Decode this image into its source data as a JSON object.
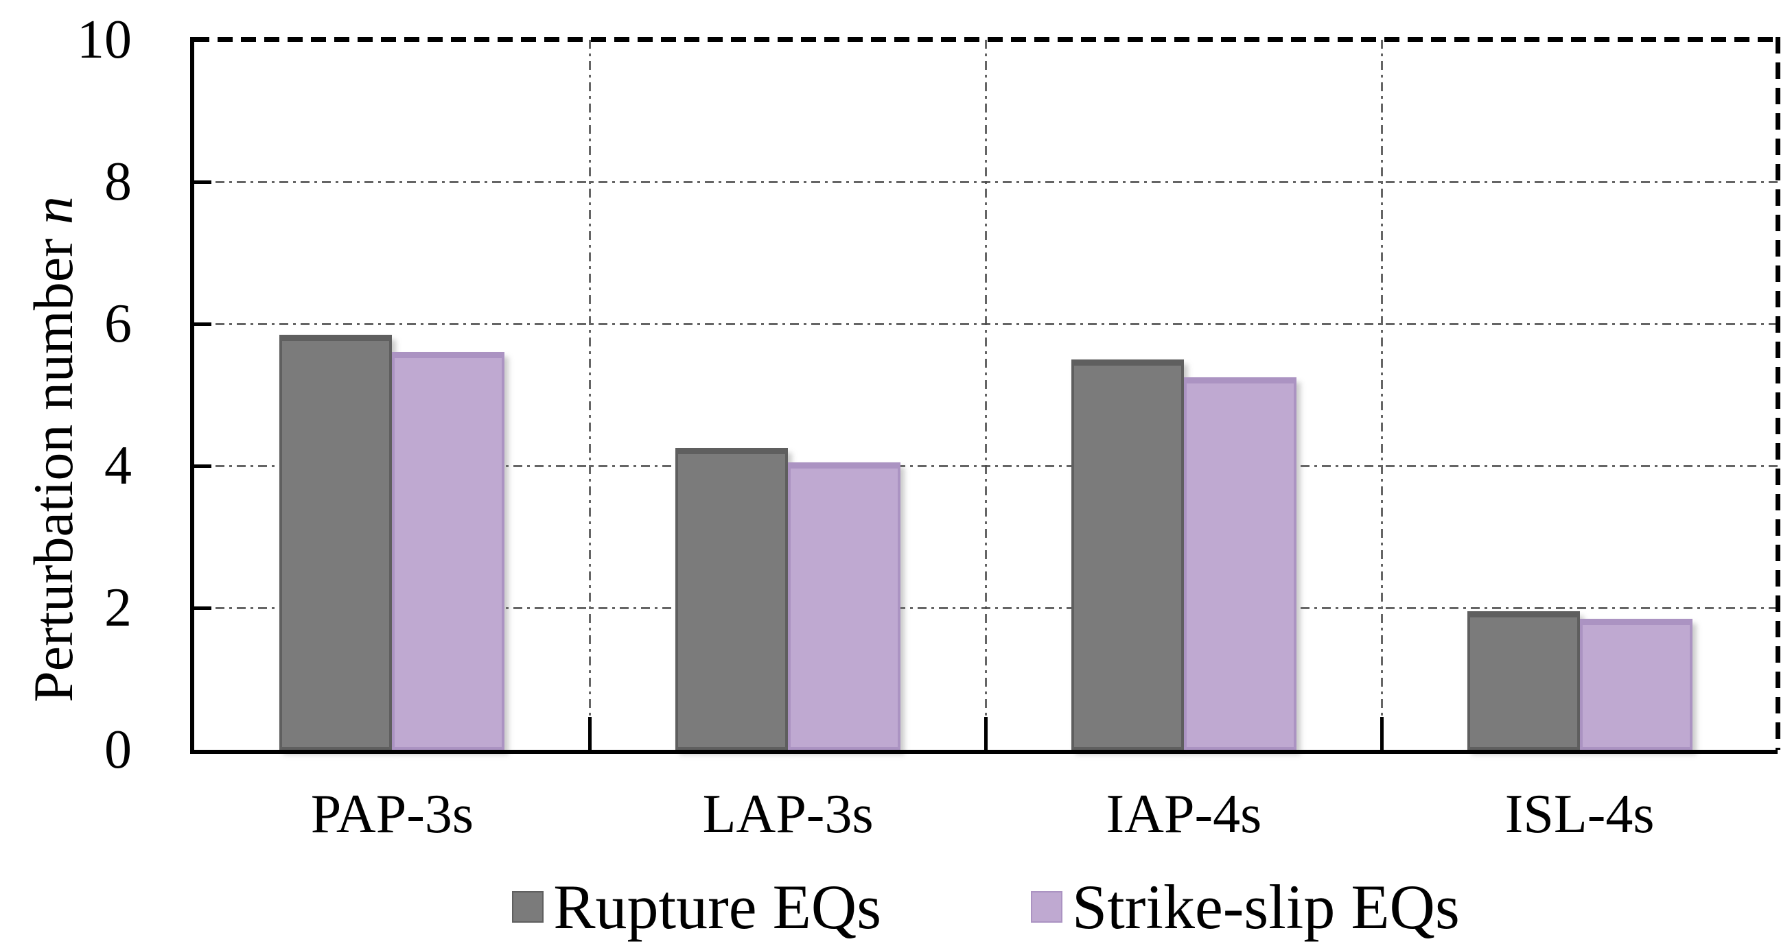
{
  "chart_data": {
    "type": "bar",
    "categories": [
      "PAP-3s",
      "LAP-3s",
      "IAP-4s",
      "ISL-4s"
    ],
    "series": [
      {
        "name": "Rupture EQs",
        "color": "#7b7b7b",
        "edge_color": "#5f5f5f",
        "values": [
          5.85,
          4.25,
          5.5,
          1.95
        ]
      },
      {
        "name": "Strike-slip EQs",
        "color": "#bfa9d1",
        "edge_color": "#ab93c2",
        "values": [
          5.6,
          4.05,
          5.25,
          1.85
        ]
      }
    ],
    "title": "",
    "xlabel": "",
    "ylabel_prefix": "Perturbation number ",
    "ylabel_italic": "n",
    "ylim": [
      0,
      10
    ],
    "yticks": [
      0,
      2,
      4,
      6,
      8,
      10
    ],
    "ytick_labels": [
      "0",
      "2",
      "4",
      "6",
      "8",
      "10"
    ],
    "grid": "dash-dot horizontal and vertical gridlines, dashed top and right frame",
    "legend_position": "bottom",
    "bar_outline": true
  }
}
